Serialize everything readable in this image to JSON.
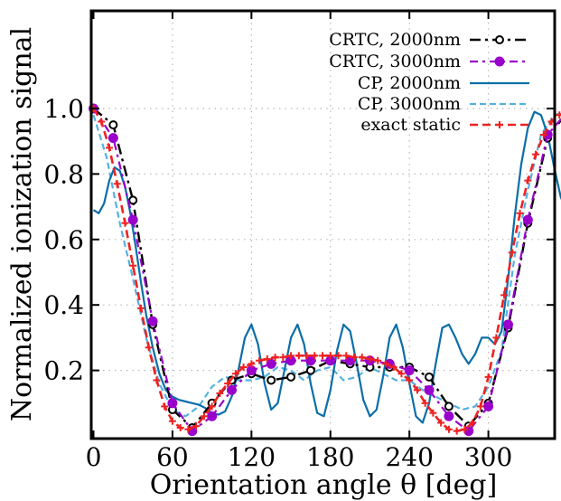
{
  "chart_data": {
    "type": "line",
    "title": "",
    "xlabel": "Orientation angle θ [deg]",
    "ylabel": "Normalized ionization signal",
    "xlim": [
      0,
      360
    ],
    "ylim": [
      0,
      1.2
    ],
    "xticks": [
      0,
      60,
      120,
      180,
      240,
      300
    ],
    "xtick_labels": [
      "0",
      "60",
      "120",
      "180",
      "240",
      "300"
    ],
    "yticks": [
      0.2,
      0.4,
      0.6,
      0.8,
      1.0
    ],
    "ytick_labels": [
      "0.2",
      "0.4",
      "0.6",
      "0.8",
      "1.0"
    ],
    "grid": true,
    "legend_position": "top-right",
    "series": [
      {
        "name": "CRTC, 2000nm",
        "color": "#000000",
        "style": "dashdot-open-circle",
        "x": [
          0,
          15,
          30,
          45,
          60,
          75,
          90,
          105,
          120,
          135,
          150,
          165,
          180,
          195,
          210,
          225,
          240,
          255,
          270,
          285,
          300,
          315,
          330,
          345,
          360
        ],
        "y": [
          1.0,
          0.95,
          0.72,
          0.34,
          0.08,
          0.025,
          0.1,
          0.17,
          0.19,
          0.17,
          0.18,
          0.2,
          0.23,
          0.22,
          0.21,
          0.21,
          0.21,
          0.18,
          0.09,
          0.03,
          0.1,
          0.33,
          0.65,
          0.91,
          0.99
        ]
      },
      {
        "name": "CRTC, 3000nm",
        "color": "#9900cc",
        "style": "dashdot-filled-circle",
        "x": [
          0,
          15,
          30,
          45,
          60,
          75,
          90,
          105,
          120,
          135,
          150,
          165,
          180,
          195,
          210,
          225,
          240,
          255,
          270,
          285,
          300,
          315,
          330,
          345,
          360
        ],
        "y": [
          1.0,
          0.91,
          0.66,
          0.35,
          0.1,
          0.015,
          0.06,
          0.14,
          0.2,
          0.22,
          0.23,
          0.23,
          0.23,
          0.23,
          0.23,
          0.22,
          0.2,
          0.14,
          0.06,
          0.015,
          0.09,
          0.34,
          0.66,
          0.92,
          0.99
        ]
      },
      {
        "name": "CP, 2000nm",
        "color": "#0a6ea8",
        "style": "solid",
        "x": [
          0,
          4,
          8,
          12,
          16,
          20,
          24,
          28,
          32,
          36,
          40,
          45,
          50,
          55,
          60,
          65,
          70,
          75,
          80,
          85,
          90,
          95,
          100,
          105,
          110,
          115,
          120,
          125,
          130,
          135,
          140,
          145,
          150,
          155,
          160,
          165,
          170,
          175,
          180,
          185,
          190,
          195,
          200,
          205,
          210,
          215,
          220,
          225,
          230,
          235,
          240,
          245,
          250,
          255,
          260,
          265,
          270,
          275,
          280,
          285,
          290,
          295,
          300,
          305,
          310,
          315,
          320,
          325,
          330,
          335,
          340,
          345,
          350,
          355,
          360
        ],
        "y": [
          0.69,
          0.68,
          0.71,
          0.78,
          0.82,
          0.81,
          0.76,
          0.68,
          0.58,
          0.47,
          0.37,
          0.27,
          0.19,
          0.14,
          0.12,
          0.11,
          0.105,
          0.1,
          0.095,
          0.085,
          0.07,
          0.065,
          0.075,
          0.12,
          0.2,
          0.3,
          0.34,
          0.28,
          0.16,
          0.08,
          0.1,
          0.2,
          0.3,
          0.34,
          0.28,
          0.16,
          0.07,
          0.06,
          0.14,
          0.26,
          0.34,
          0.32,
          0.22,
          0.11,
          0.06,
          0.08,
          0.18,
          0.3,
          0.34,
          0.27,
          0.16,
          0.06,
          0.04,
          0.1,
          0.22,
          0.33,
          0.34,
          0.3,
          0.25,
          0.22,
          0.25,
          0.3,
          0.3,
          0.28,
          0.32,
          0.48,
          0.67,
          0.83,
          0.94,
          0.99,
          0.98,
          0.92,
          0.82,
          0.73,
          0.68
        ]
      },
      {
        "name": "CP, 3000nm",
        "color": "#55b0e0",
        "style": "dashed",
        "x": [
          0,
          10,
          20,
          30,
          40,
          50,
          60,
          70,
          80,
          90,
          100,
          110,
          120,
          130,
          140,
          150,
          160,
          170,
          180,
          190,
          200,
          210,
          220,
          230,
          240,
          250,
          260,
          270,
          280,
          290,
          300,
          310,
          320,
          330,
          340,
          350,
          360
        ],
        "y": [
          0.98,
          0.85,
          0.65,
          0.48,
          0.3,
          0.16,
          0.08,
          0.06,
          0.09,
          0.15,
          0.18,
          0.17,
          0.17,
          0.18,
          0.21,
          0.2,
          0.17,
          0.2,
          0.21,
          0.17,
          0.18,
          0.21,
          0.19,
          0.17,
          0.17,
          0.14,
          0.12,
          0.1,
          0.08,
          0.09,
          0.15,
          0.26,
          0.55,
          0.75,
          0.92,
          0.98,
          0.99
        ]
      },
      {
        "name": "exact static",
        "color": "#ee2222",
        "style": "dashed-plus",
        "x": [
          0,
          6,
          12,
          18,
          24,
          30,
          36,
          42,
          48,
          54,
          60,
          66,
          72,
          78,
          84,
          90,
          96,
          102,
          108,
          114,
          120,
          126,
          132,
          138,
          144,
          150,
          156,
          162,
          168,
          174,
          180,
          186,
          192,
          198,
          204,
          210,
          216,
          222,
          228,
          234,
          240,
          246,
          252,
          258,
          264,
          270,
          276,
          282,
          288,
          294,
          300,
          306,
          312,
          318,
          324,
          330,
          336,
          342,
          348,
          354,
          360
        ],
        "y": [
          1.0,
          0.96,
          0.88,
          0.77,
          0.65,
          0.52,
          0.39,
          0.27,
          0.17,
          0.09,
          0.045,
          0.025,
          0.02,
          0.03,
          0.06,
          0.09,
          0.13,
          0.16,
          0.19,
          0.21,
          0.22,
          0.23,
          0.235,
          0.24,
          0.24,
          0.245,
          0.245,
          0.245,
          0.245,
          0.245,
          0.245,
          0.245,
          0.245,
          0.24,
          0.24,
          0.235,
          0.23,
          0.22,
          0.21,
          0.19,
          0.17,
          0.14,
          0.1,
          0.07,
          0.04,
          0.02,
          0.015,
          0.02,
          0.04,
          0.09,
          0.18,
          0.3,
          0.43,
          0.56,
          0.68,
          0.78,
          0.86,
          0.92,
          0.96,
          0.98,
          0.99
        ]
      }
    ]
  }
}
